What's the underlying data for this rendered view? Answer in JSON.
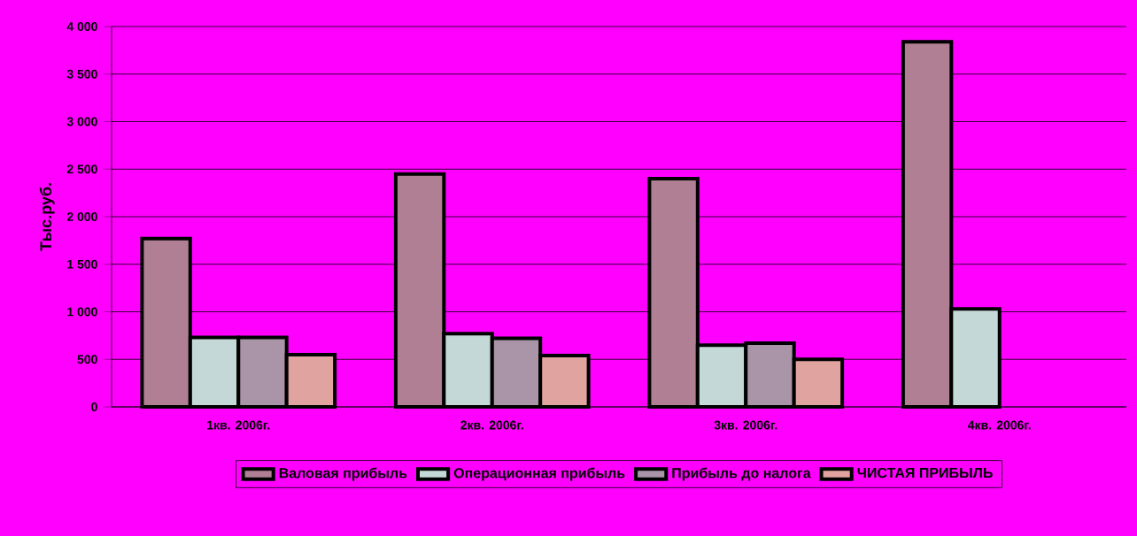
{
  "chart_data": {
    "type": "bar",
    "ylabel": "Тыс.руб.",
    "categories": [
      "1кв. 2006г.",
      "2кв. 2006г.",
      "3кв. 2006г.",
      "4кв. 2006г."
    ],
    "series": [
      {
        "name": "Валовая прибыль",
        "color": "#b07f93",
        "values": [
          1770,
          2450,
          2400,
          3840
        ]
      },
      {
        "name": "Операционная прибыль",
        "color": "#c4d9d7",
        "values": [
          730,
          770,
          650,
          1030
        ]
      },
      {
        "name": "Прибыль до налога",
        "color": "#a994a8",
        "values": [
          730,
          720,
          670,
          null
        ]
      },
      {
        "name": "ЧИСТАЯ ПРИБЫЛЬ",
        "color": "#e0a3a0",
        "values": [
          550,
          540,
          500,
          null
        ]
      }
    ],
    "ylim": [
      0,
      4000
    ],
    "yticks": [
      {
        "value": 0,
        "label": "0"
      },
      {
        "value": 500,
        "label": "500"
      },
      {
        "value": 1000,
        "label": "1 000"
      },
      {
        "value": 1500,
        "label": "1 500"
      },
      {
        "value": 2000,
        "label": "2 000"
      },
      {
        "value": 2500,
        "label": "2 500"
      },
      {
        "value": 3000,
        "label": "3 000"
      },
      {
        "value": 3500,
        "label": "3 500"
      },
      {
        "value": 4000,
        "label": "4 000"
      }
    ],
    "grid": "y",
    "legend": "bottom"
  }
}
